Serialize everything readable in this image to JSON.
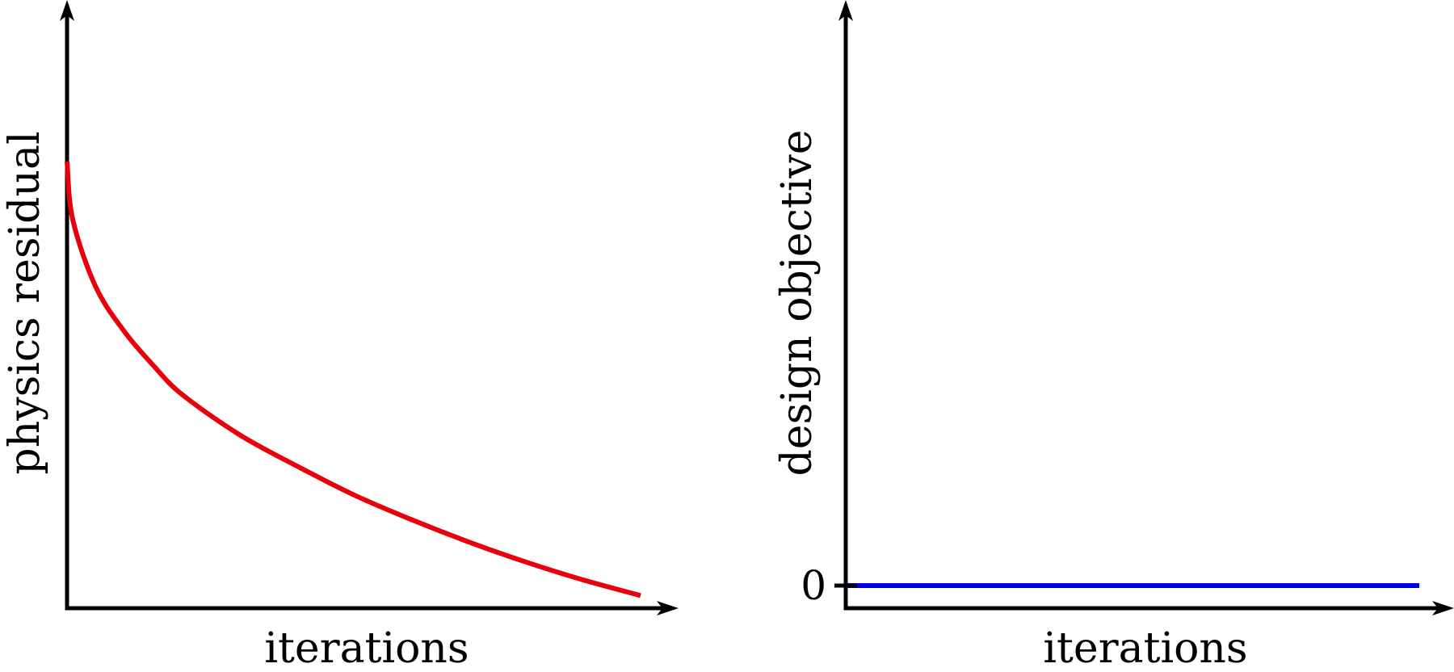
{
  "colors": {
    "axis": "#000000",
    "background": "#ffffff"
  },
  "chart_data": [
    {
      "type": "line",
      "title": "",
      "xlabel": "iterations",
      "ylabel": "physics residual",
      "xlim": [
        0,
        1.06
      ],
      "ylim": [
        0,
        1.33
      ],
      "grid": false,
      "legend": "none",
      "x_tick_labels": [],
      "y_tick_labels": [],
      "series": [
        {
          "color": "#e8000b",
          "x": [
            0.0,
            0.01,
            0.05,
            0.1,
            0.15,
            0.2,
            0.3,
            0.4,
            0.5,
            0.6,
            0.7,
            0.8,
            0.9,
            1.0
          ],
          "y": [
            1.0,
            0.87,
            0.72,
            0.62,
            0.545,
            0.48,
            0.39,
            0.32,
            0.255,
            0.2,
            0.15,
            0.105,
            0.065,
            0.03
          ]
        }
      ]
    },
    {
      "type": "line",
      "title": "",
      "xlabel": "iterations",
      "ylabel": "design objective",
      "xlim": [
        0,
        1.06
      ],
      "ylim": [
        -0.05,
        1.33
      ],
      "grid": false,
      "legend": "none",
      "y_tick_labels": [
        "0"
      ],
      "y_ticks": [
        0
      ],
      "series": [
        {
          "color": "#0000e6",
          "x": [
            0.0,
            1.0
          ],
          "y": [
            0,
            0
          ]
        }
      ]
    }
  ]
}
